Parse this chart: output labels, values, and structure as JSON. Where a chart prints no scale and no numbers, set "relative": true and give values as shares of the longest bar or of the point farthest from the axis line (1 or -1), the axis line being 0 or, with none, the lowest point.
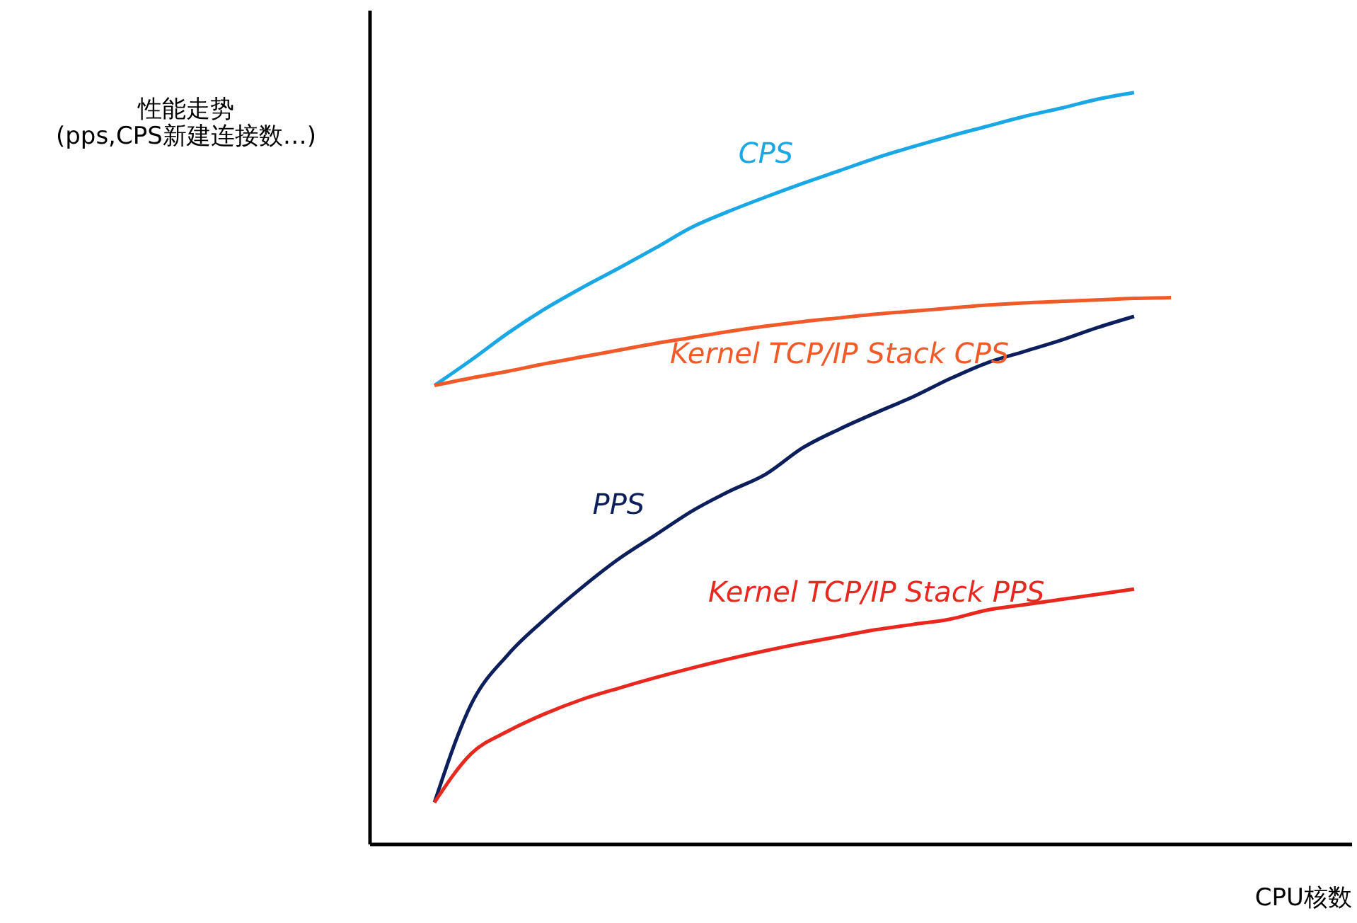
{
  "chart_data": {
    "type": "line",
    "relative": true,
    "ylabel": "性能走势\n(pps,CPS新建连接数…)",
    "xlabel": "CPU核数",
    "grid": false,
    "marker": "none",
    "line_style": "solid",
    "categories": [
      null,
      null,
      null,
      null,
      null,
      null,
      null,
      null,
      null,
      null,
      null,
      null,
      null,
      null,
      null,
      null,
      null,
      null,
      null,
      null,
      null
    ],
    "series": [
      {
        "name": "CPS",
        "color": "#1aa7e6",
        "values": [
          0.61,
          0.644,
          0.68,
          0.712,
          0.74,
          0.766,
          0.793,
          0.821,
          0.842,
          0.861,
          0.879,
          0.896,
          0.913,
          0.928,
          0.942,
          0.955,
          0.968,
          0.979,
          0.991,
          1.0,
          null
        ]
      },
      {
        "name": "Kernel TCP/IP Stack CPS",
        "color": "#ef5a28",
        "values": [
          0.61,
          0.62,
          0.629,
          0.639,
          0.648,
          0.657,
          0.666,
          0.674,
          0.682,
          0.689,
          0.695,
          0.7,
          0.705,
          0.709,
          0.713,
          0.717,
          0.72,
          0.722,
          0.724,
          0.726,
          0.727
        ]
      },
      {
        "name": "PPS",
        "color": "#0c1f5c",
        "values": [
          0.055,
          0.186,
          0.252,
          0.299,
          0.341,
          0.379,
          0.411,
          0.443,
          0.469,
          0.492,
          0.527,
          0.552,
          0.574,
          0.595,
          0.619,
          0.64,
          0.655,
          0.67,
          0.687,
          0.702,
          null
        ]
      },
      {
        "name": "Kernel TCP/IP Stack PPS",
        "color": "#e8281e",
        "values": [
          0.055,
          0.12,
          0.15,
          0.173,
          0.192,
          0.207,
          0.221,
          0.234,
          0.246,
          0.257,
          0.267,
          0.276,
          0.285,
          0.292,
          0.299,
          0.311,
          0.318,
          0.325,
          0.332,
          0.339,
          null
        ]
      }
    ]
  }
}
